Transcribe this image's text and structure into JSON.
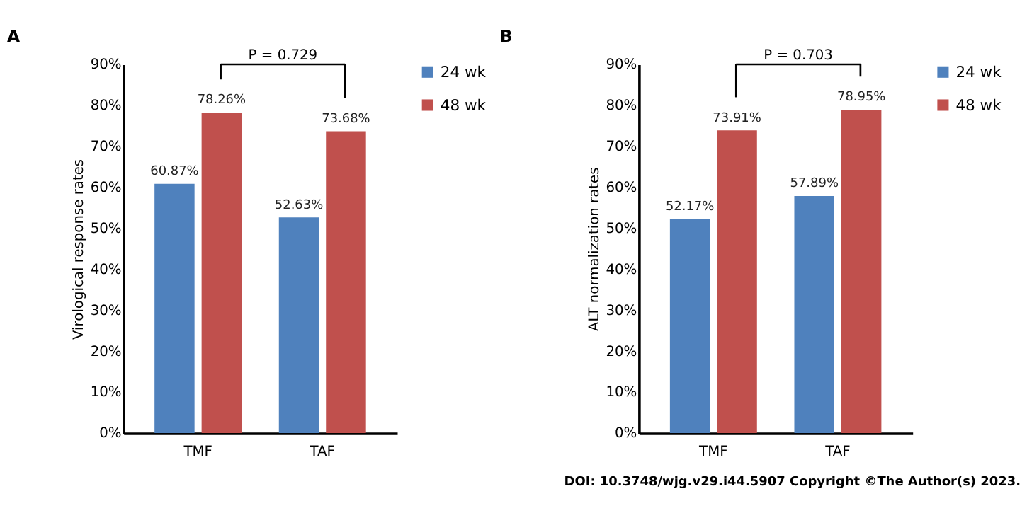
{
  "chart_data": [
    {
      "type": "bar",
      "title": "A",
      "ylabel": "Virological response rates",
      "categories": [
        "TMF",
        "TAF"
      ],
      "series": [
        {
          "name": "24 wk",
          "color": "#4f81bd",
          "values": [
            60.87,
            52.63
          ],
          "value_labels": [
            "60.87%",
            "52.63%"
          ]
        },
        {
          "name": "48 wk",
          "color": "#c0504d",
          "values": [
            78.26,
            73.68
          ],
          "value_labels": [
            "78.26%",
            "73.68%"
          ]
        }
      ],
      "ylim": [
        0,
        90
      ],
      "yticks": [
        {
          "value": 0,
          "label": "0%"
        },
        {
          "value": 10,
          "label": "10%"
        },
        {
          "value": 20,
          "label": "20%"
        },
        {
          "value": 30,
          "label": "30%"
        },
        {
          "value": 40,
          "label": "40%"
        },
        {
          "value": 50,
          "label": "50%"
        },
        {
          "value": 60,
          "label": "60%"
        },
        {
          "value": 70,
          "label": "70%"
        },
        {
          "value": 80,
          "label": "80%"
        },
        {
          "value": 90,
          "label": "90%"
        }
      ],
      "grid": false,
      "legend": "right",
      "annotations": [
        "P = 0.729"
      ]
    },
    {
      "type": "bar",
      "title": "B",
      "ylabel": "ALT normalization rates",
      "categories": [
        "TMF",
        "TAF"
      ],
      "series": [
        {
          "name": "24 wk",
          "color": "#4f81bd",
          "values": [
            52.17,
            57.89
          ],
          "value_labels": [
            "52.17%",
            "57.89%"
          ]
        },
        {
          "name": "48 wk",
          "color": "#c0504d",
          "values": [
            73.91,
            78.95
          ],
          "value_labels": [
            "73.91%",
            "78.95%"
          ]
        }
      ],
      "ylim": [
        0,
        90
      ],
      "yticks": [
        {
          "value": 0,
          "label": "0%"
        },
        {
          "value": 10,
          "label": "10%"
        },
        {
          "value": 20,
          "label": "20%"
        },
        {
          "value": 30,
          "label": "30%"
        },
        {
          "value": 40,
          "label": "40%"
        },
        {
          "value": 50,
          "label": "50%"
        },
        {
          "value": 60,
          "label": "60%"
        },
        {
          "value": 70,
          "label": "70%"
        },
        {
          "value": 80,
          "label": "80%"
        },
        {
          "value": 90,
          "label": "90%"
        }
      ],
      "grid": false,
      "legend": "right",
      "annotations": [
        "P = 0.703",
        "DOI: 10.3748/wjg.v29.i44.5907 Copyright ©The Author(s) 2023."
      ]
    }
  ]
}
